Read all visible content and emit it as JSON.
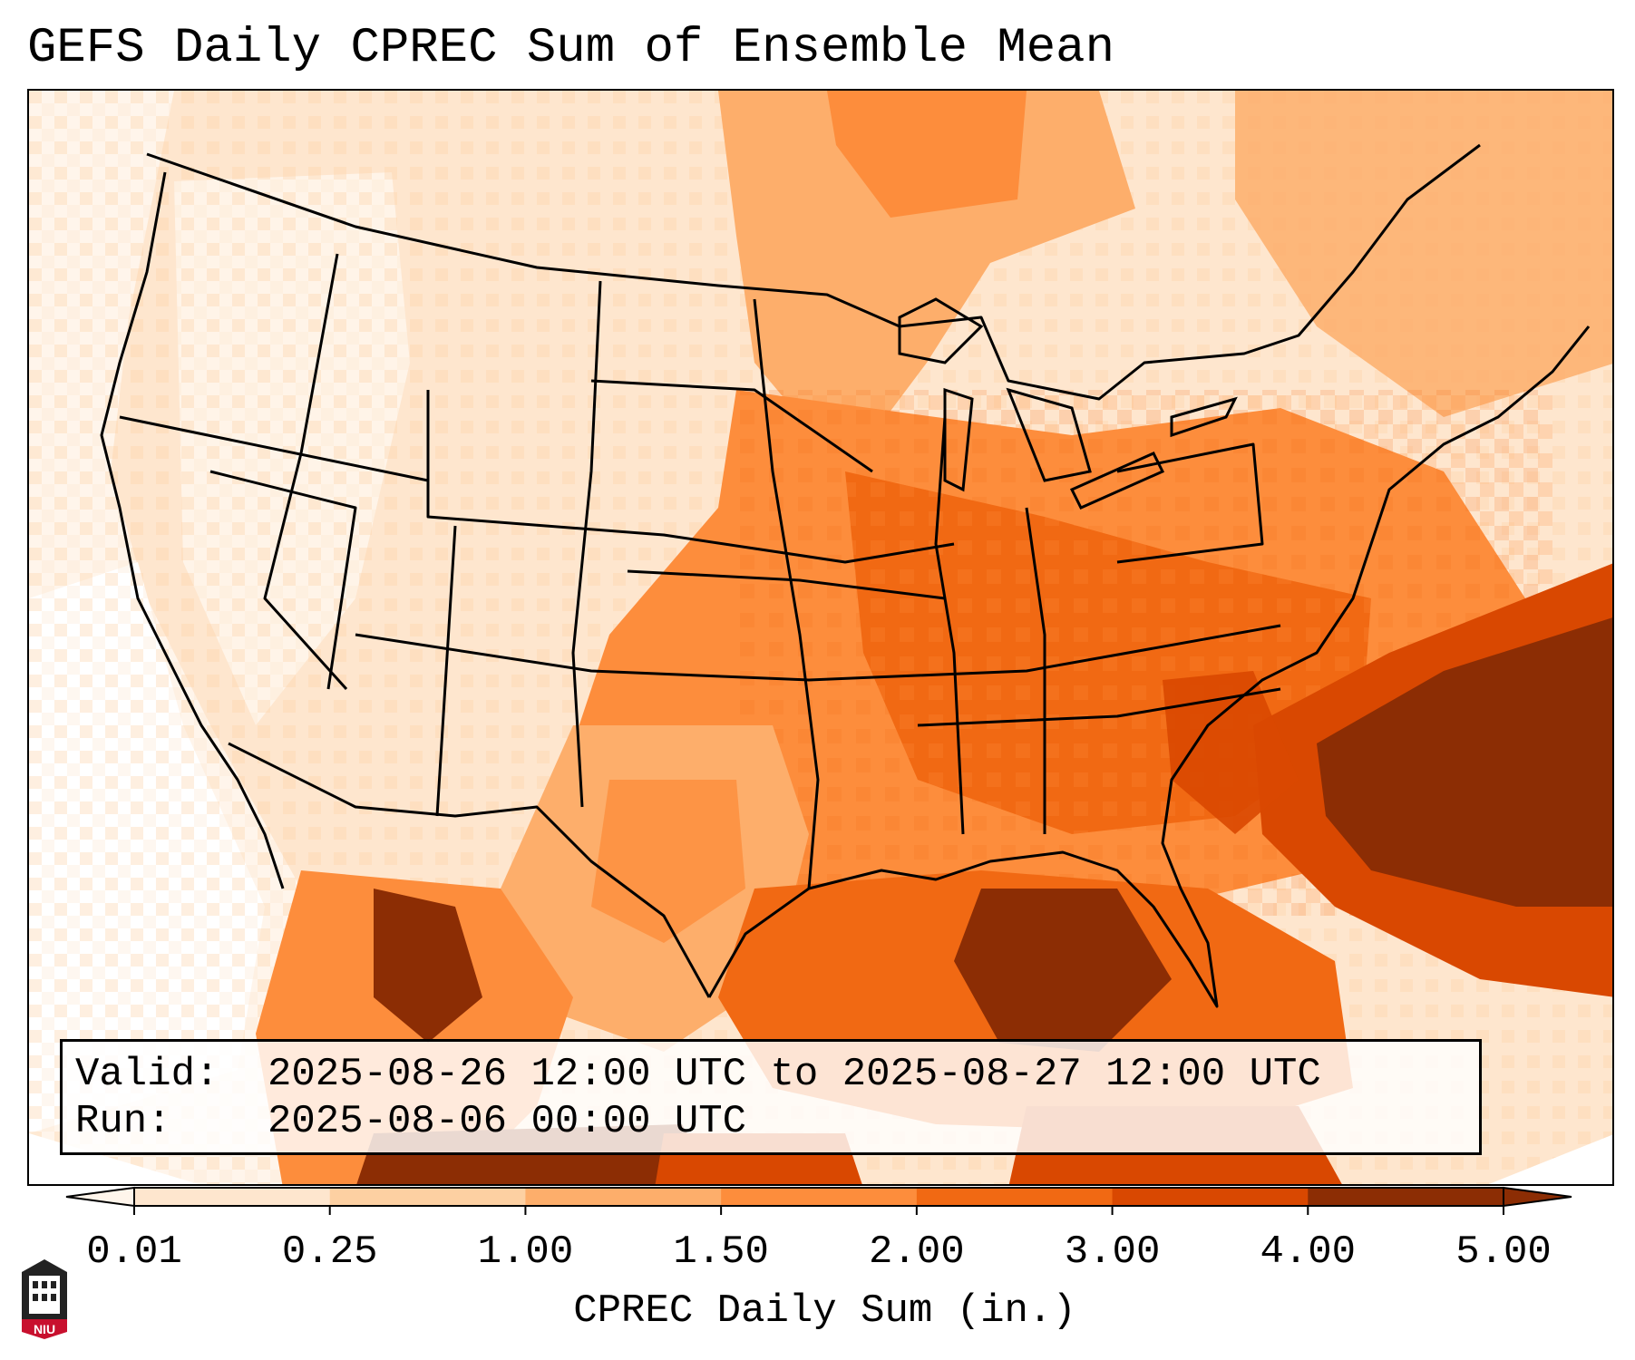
{
  "title": "GEFS Daily CPREC Sum of Ensemble Mean",
  "info": {
    "valid_label": "Valid:",
    "valid_value": "2025-08-26 12:00 UTC to 2025-08-27 12:00 UTC",
    "run_label": "Run:",
    "run_value": "2025-08-06 00:00 UTC"
  },
  "colorbar": {
    "label": "CPREC Daily Sum (in.)",
    "ticks": [
      "0.01",
      "0.25",
      "1.00",
      "1.50",
      "2.00",
      "3.00",
      "4.00",
      "5.00"
    ],
    "colors": [
      "#fff5eb",
      "#fee6ce",
      "#fdd0a2",
      "#fdae6b",
      "#fd8d3c",
      "#f16913",
      "#d94801",
      "#8c2d04"
    ],
    "extend": "both"
  },
  "logo": {
    "text": "NIU",
    "color": "#c8102e",
    "dark": "#222222"
  },
  "map": {
    "region": "Contiguous United States, northern Mexico, Gulf of Mexico, western Atlantic",
    "field": "CPREC daily sum",
    "boundaries": "state and national borders, coastlines"
  }
}
